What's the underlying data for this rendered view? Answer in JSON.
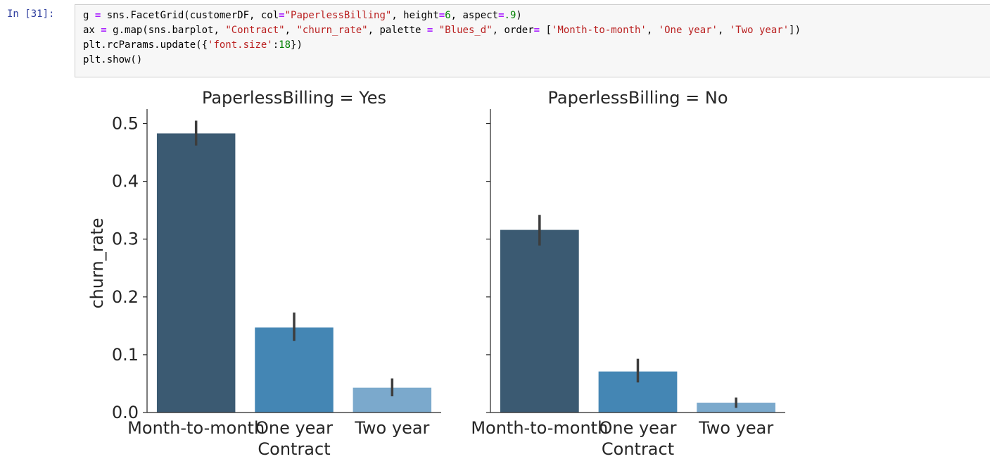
{
  "cell": {
    "prompt": "In [31]:",
    "code_lines": [
      [
        [
          "g ",
          "plain"
        ],
        [
          "=",
          "op"
        ],
        [
          " sns.FacetGrid(customerDF, col",
          "plain"
        ],
        [
          "=",
          "op"
        ],
        [
          "\"PaperlessBilling\"",
          "str"
        ],
        [
          ", height",
          "plain"
        ],
        [
          "=",
          "op"
        ],
        [
          "6",
          "num"
        ],
        [
          ", aspect",
          "plain"
        ],
        [
          "=",
          "op"
        ],
        [
          ".9",
          "num"
        ],
        [
          ")",
          "plain"
        ]
      ],
      [
        [
          "ax ",
          "plain"
        ],
        [
          "=",
          "op"
        ],
        [
          " g.map(sns.barplot, ",
          "plain"
        ],
        [
          "\"Contract\"",
          "str"
        ],
        [
          ", ",
          "plain"
        ],
        [
          "\"churn_rate\"",
          "str"
        ],
        [
          ", palette ",
          "plain"
        ],
        [
          "=",
          "op"
        ],
        [
          " ",
          "plain"
        ],
        [
          "\"Blues_d\"",
          "str"
        ],
        [
          ", order",
          "plain"
        ],
        [
          "=",
          "op"
        ],
        [
          " [",
          "plain"
        ],
        [
          "'Month-to-month'",
          "str"
        ],
        [
          ", ",
          "plain"
        ],
        [
          "'One year'",
          "str"
        ],
        [
          ", ",
          "plain"
        ],
        [
          "'Two year'",
          "str"
        ],
        [
          "])",
          "plain"
        ]
      ],
      [
        [
          "plt.rcParams.update({",
          "plain"
        ],
        [
          "'font.size'",
          "str"
        ],
        [
          ":",
          "plain"
        ],
        [
          "18",
          "num"
        ],
        [
          "})",
          "plain"
        ]
      ],
      [
        [
          "plt.show()",
          "plain"
        ]
      ]
    ]
  },
  "chart_data": [
    {
      "type": "bar",
      "title": "PaperlessBilling = Yes",
      "xlabel": "Contract",
      "ylabel": "churn_rate",
      "categories": [
        "Month-to-month",
        "One year",
        "Two year"
      ],
      "values": [
        0.483,
        0.147,
        0.043
      ],
      "ci_low": [
        0.462,
        0.124,
        0.028
      ],
      "ci_high": [
        0.505,
        0.173,
        0.059
      ],
      "colors": [
        "#3b5a72",
        "#4486b4",
        "#7ba9cc"
      ],
      "ylim": [
        0,
        0.525
      ],
      "yticks": [
        "0.0",
        "0.1",
        "0.2",
        "0.3",
        "0.4",
        "0.5"
      ]
    },
    {
      "type": "bar",
      "title": "PaperlessBilling = No",
      "xlabel": "Contract",
      "ylabel": "",
      "categories": [
        "Month-to-month",
        "One year",
        "Two year"
      ],
      "values": [
        0.316,
        0.071,
        0.017
      ],
      "ci_low": [
        0.289,
        0.052,
        0.008
      ],
      "ci_high": [
        0.342,
        0.093,
        0.026
      ],
      "colors": [
        "#3b5a72",
        "#4486b4",
        "#7ba9cc"
      ],
      "ylim": [
        0,
        0.525
      ],
      "yticks": []
    }
  ],
  "colors": {
    "prompt": "#303f9f",
    "string": "#ba2121",
    "number": "#008000",
    "operator": "#aa22ff",
    "errorbar": "#3d3d3d",
    "axis": "#262626"
  }
}
